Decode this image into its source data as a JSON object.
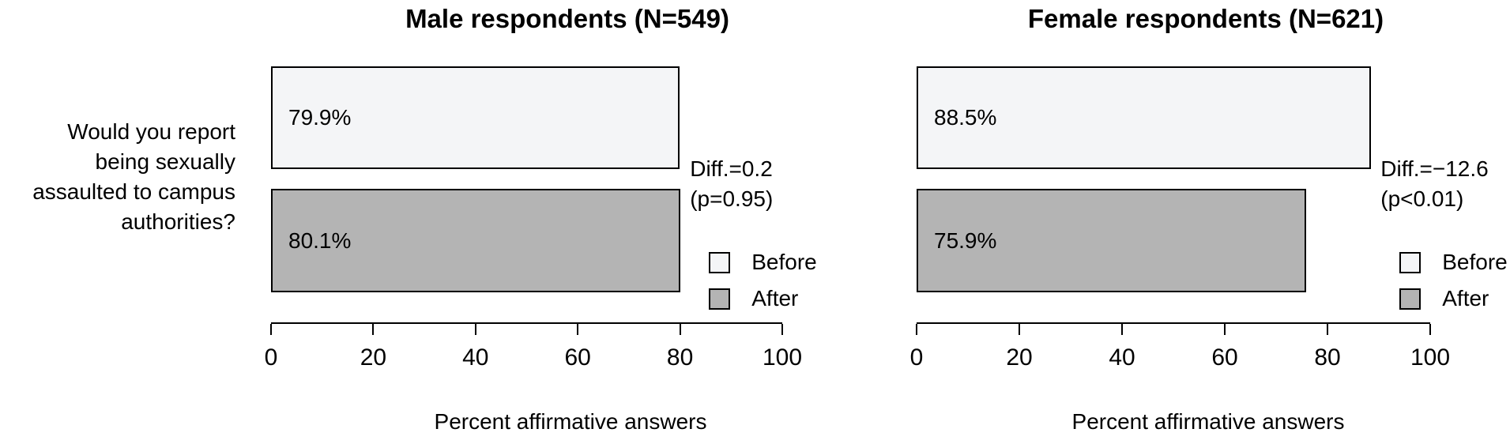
{
  "figure": {
    "question_lines": [
      "Would you report",
      "being sexually",
      "assaulted to campus",
      "authorities?"
    ],
    "colors": {
      "before_fill": "#f4f5f7",
      "after_fill": "#b4b4b4",
      "border": "#000000",
      "background": "#ffffff",
      "text": "#000000"
    }
  },
  "chart_data": [
    {
      "type": "bar",
      "orientation": "horizontal",
      "title": "Male respondents (N=549)",
      "categories": [
        "Before",
        "After"
      ],
      "values": [
        79.9,
        80.1
      ],
      "bar_labels": [
        "79.9%",
        "80.1%"
      ],
      "series_colors": [
        "#f4f5f7",
        "#b4b4b4"
      ],
      "annotation": {
        "diff": "Diff.=0.2",
        "p": "(p=0.95)"
      },
      "legend": {
        "entries": [
          "Before",
          "After"
        ],
        "position": "right-of-bars"
      },
      "xlabel": "Percent affirmative answers",
      "xlim": [
        0,
        100
      ],
      "xticks": [
        "0",
        "20",
        "40",
        "60",
        "80",
        "100"
      ],
      "grid": false
    },
    {
      "type": "bar",
      "orientation": "horizontal",
      "title": "Female respondents (N=621)",
      "categories": [
        "Before",
        "After"
      ],
      "values": [
        88.5,
        75.9
      ],
      "bar_labels": [
        "88.5%",
        "75.9%"
      ],
      "series_colors": [
        "#f4f5f7",
        "#b4b4b4"
      ],
      "annotation": {
        "diff": "Diff.=−12.6",
        "p": "(p<0.01)"
      },
      "legend": {
        "entries": [
          "Before",
          "After"
        ],
        "position": "right-of-bars"
      },
      "xlabel": "Percent affirmative answers",
      "xlim": [
        0,
        100
      ],
      "xticks": [
        "0",
        "20",
        "40",
        "60",
        "80",
        "100"
      ],
      "grid": false
    }
  ]
}
